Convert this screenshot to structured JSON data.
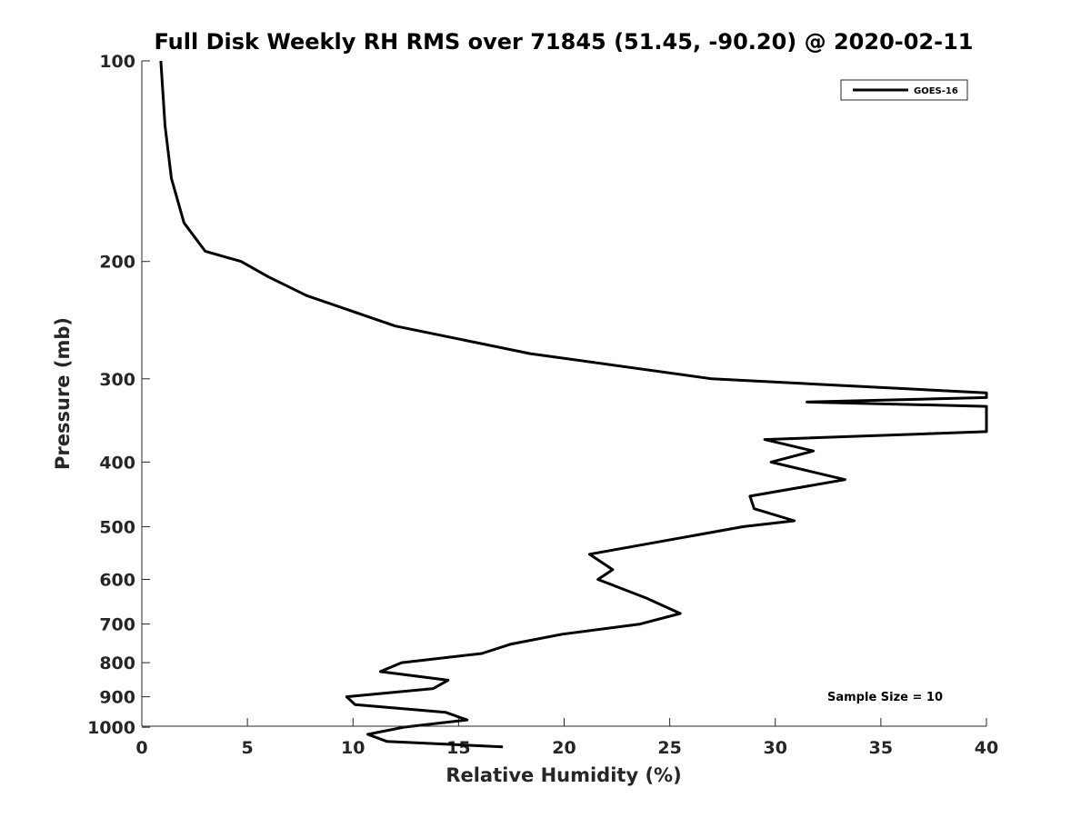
{
  "chart_data": {
    "type": "line",
    "title": "Full Disk Weekly RH RMS over 71845 (51.45, -90.20) @ 2020-02-11",
    "xlabel": "Relative Humidity (%)",
    "ylabel": "Pressure (mb)",
    "xlim": [
      0,
      40
    ],
    "ylim": [
      1000,
      100
    ],
    "y_scale": "log",
    "grid": false,
    "legend_position": "top-right",
    "x_ticks": [
      0,
      5,
      10,
      15,
      20,
      25,
      30,
      35,
      40
    ],
    "y_ticks": [
      100,
      200,
      300,
      400,
      500,
      600,
      700,
      800,
      900,
      1000
    ],
    "annotation": "Sample Size = 10",
    "series": [
      {
        "name": "GOES-16",
        "color": "#000000",
        "points": [
          [
            0.9,
            100
          ],
          [
            1.1,
            125
          ],
          [
            1.4,
            150
          ],
          [
            2.0,
            175
          ],
          [
            3.0,
            193
          ],
          [
            4.7,
            200
          ],
          [
            6.0,
            211
          ],
          [
            7.8,
            225
          ],
          [
            12.0,
            250
          ],
          [
            18.4,
            275
          ],
          [
            27.0,
            300
          ],
          [
            40.0,
            315
          ],
          [
            40.0,
            320
          ],
          [
            31.5,
            325
          ],
          [
            40.0,
            330
          ],
          [
            40.0,
            360
          ],
          [
            29.5,
            370
          ],
          [
            31.8,
            385
          ],
          [
            29.8,
            400
          ],
          [
            33.3,
            425
          ],
          [
            28.8,
            450
          ],
          [
            29.0,
            470
          ],
          [
            30.9,
            490
          ],
          [
            28.5,
            500
          ],
          [
            21.2,
            550
          ],
          [
            22.3,
            580
          ],
          [
            21.6,
            600
          ],
          [
            23.9,
            640
          ],
          [
            25.5,
            675
          ],
          [
            23.6,
            700
          ],
          [
            19.9,
            725
          ],
          [
            17.5,
            750
          ],
          [
            16.1,
            775
          ],
          [
            12.3,
            800
          ],
          [
            11.3,
            825
          ],
          [
            14.5,
            850
          ],
          [
            13.8,
            875
          ],
          [
            9.7,
            900
          ],
          [
            10.1,
            925
          ],
          [
            14.4,
            950
          ],
          [
            15.4,
            975
          ],
          [
            12.4,
            1000
          ],
          [
            10.7,
            1025
          ],
          [
            11.6,
            1050
          ],
          [
            17.1,
            1070
          ]
        ]
      }
    ]
  }
}
